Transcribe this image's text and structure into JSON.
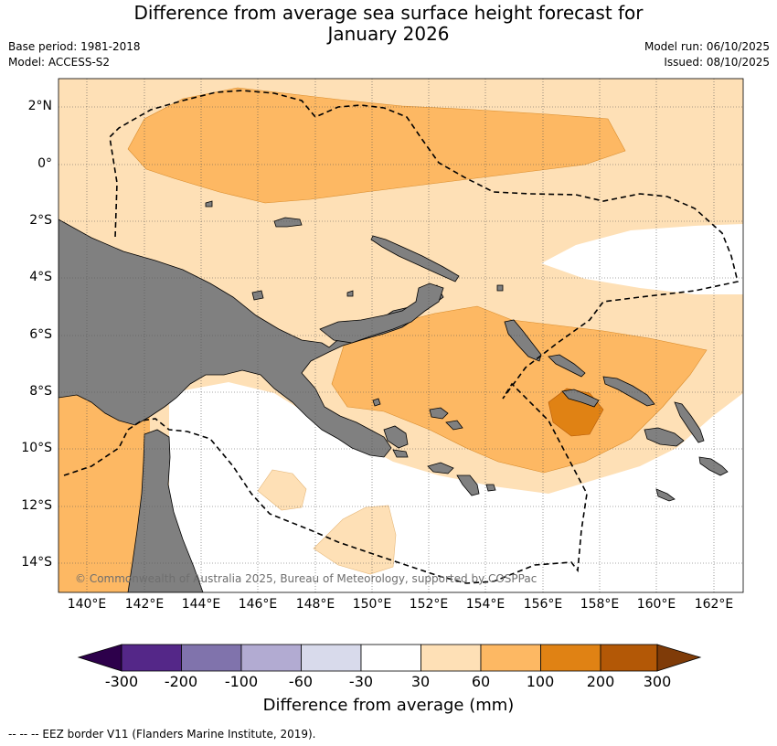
{
  "title_line1": "Difference from average sea surface height forecast for",
  "title_line2": "January 2026",
  "base_period": "Base period: 1981-2018",
  "model": "Model: ACCESS-S2",
  "model_run": "Model run: 06/10/2025",
  "issued": "Issued: 08/10/2025",
  "copyright": "© Commonwealth of Australia 2025, Bureau of Meteorology, supported by COSPPac",
  "latitude_labels": [
    "2°N",
    "0°",
    "2°S",
    "4°S",
    "6°S",
    "8°S",
    "10°S",
    "12°S",
    "14°S"
  ],
  "longitude_labels": [
    "140°E",
    "142°E",
    "144°E",
    "146°E",
    "148°E",
    "150°E",
    "152°E",
    "154°E",
    "156°E",
    "158°E",
    "160°E",
    "162°E"
  ],
  "colorbar": {
    "title": "Difference from average (mm)",
    "tick_labels": [
      "-300",
      "-200",
      "-100",
      "-60",
      "-30",
      "30",
      "60",
      "100",
      "200",
      "300"
    ],
    "colors": [
      "#2d004b",
      "#542788",
      "#8073ac",
      "#b2abd2",
      "#d8daeb",
      "#ffffff",
      "#fee0b6",
      "#fdb863",
      "#e08214",
      "#b35806",
      "#7f3b08"
    ]
  },
  "map_colors": {
    "land": "#808080",
    "level_30_60": "#fee0b6",
    "level_60_100": "#fdb863",
    "level_100_200": "#e08214",
    "neutral": "#ffffff"
  },
  "footer": "--  --  -- EEZ border V11 (Flanders Marine Institute, 2019)."
}
